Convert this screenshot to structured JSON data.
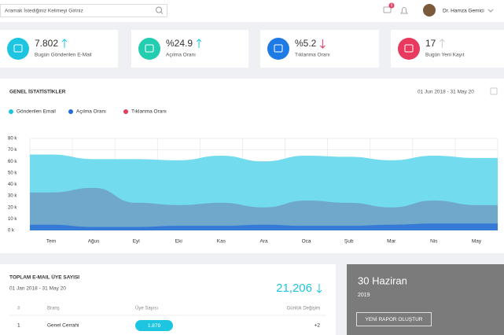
{
  "search": {
    "placeholder": "Aramak İstediğiniz Kelimeyi Giriniz"
  },
  "header": {
    "badge": "9",
    "user": "Dr. Hamza Gemici"
  },
  "stats": [
    {
      "value": "7.802",
      "label": "Bugün Gönderilen E-Mail"
    },
    {
      "value": "%24.9",
      "label": "Açılma Oranı"
    },
    {
      "value": "%5.2",
      "label": "Tıklanma Oranı"
    },
    {
      "value": "17",
      "label": "Bugün Yeni Kayıt"
    }
  ],
  "chart_data": {
    "type": "area",
    "title": "GENEL İSTATİSTİKLER",
    "date_range": "01 Jun 2018 - 31 May 20",
    "categories": [
      "Tem",
      "Ağus",
      "Eyl",
      "Eki",
      "Kas",
      "Ara",
      "Oca",
      "Şub",
      "Mar",
      "Nis",
      "May"
    ],
    "series": [
      {
        "name": "Gönderilen Email",
        "color": "#1ec5e0",
        "fill": "#72dbee",
        "values": [
          66,
          62,
          62,
          61,
          65,
          60,
          65,
          64,
          61,
          65,
          63
        ]
      },
      {
        "name": "Açılma Oranı",
        "color": "#1e6fd8",
        "fill": "#6f9fc4",
        "values": [
          33,
          37,
          24,
          22,
          24,
          20,
          26,
          24,
          20,
          26,
          22
        ]
      },
      {
        "name": "Tıklanma Oranı",
        "color": "#e8395e",
        "fill": "#2c72d9",
        "values": [
          5,
          3,
          3,
          4,
          4,
          5,
          4,
          4,
          5,
          6,
          6
        ]
      }
    ],
    "ylim": [
      0,
      80
    ],
    "yticks": [
      {
        "value": 0,
        "label": "0 k"
      },
      {
        "value": 10,
        "label": "10 k"
      },
      {
        "value": 20,
        "label": "20 k"
      },
      {
        "value": 30,
        "label": "30 k"
      },
      {
        "value": 40,
        "label": "40 k"
      },
      {
        "value": 50,
        "label": "50 k"
      },
      {
        "value": 60,
        "label": "60 k"
      },
      {
        "value": 70,
        "label": "70 k"
      },
      {
        "value": 80,
        "label": "80 k"
      }
    ],
    "grid": true
  },
  "members": {
    "title": "TOPLAM E-MAIL ÜYE SAYISI",
    "date_range": "01 Jan 2018 - 31 May 20",
    "total": "21,206",
    "table": {
      "columns": [
        "#",
        "Branş",
        "Üye Sayısı",
        "Günlük Değişim"
      ],
      "rows": [
        [
          "1",
          "Genel Cerrahi",
          "1.879",
          "+2"
        ]
      ]
    }
  },
  "report": {
    "date": "30 Haziran",
    "year": "2019",
    "button": "YENİ RAPOR OLUŞTUR"
  }
}
